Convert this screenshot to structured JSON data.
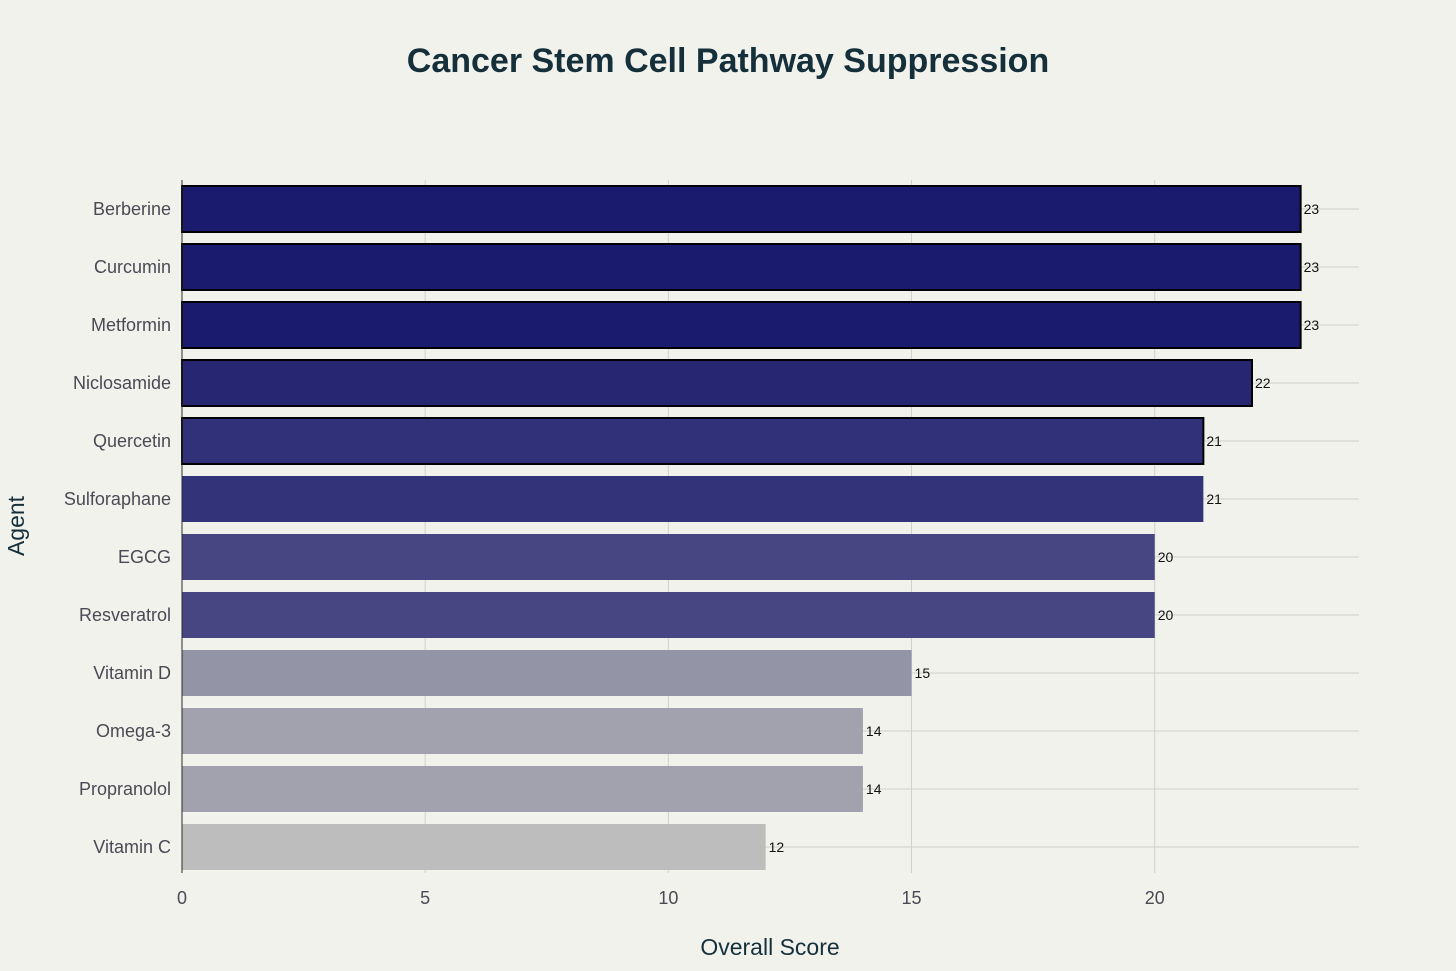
{
  "chart_data": {
    "type": "bar",
    "orientation": "horizontal",
    "title": "Cancer Stem Cell Pathway Suppression",
    "xlabel": "Overall Score",
    "ylabel": "Agent",
    "xlim": [
      0,
      24.2
    ],
    "xticks": [
      0,
      5,
      10,
      15,
      20
    ],
    "grid": true,
    "legend": "none",
    "categories": [
      "Berberine",
      "Curcumin",
      "Metformin",
      "Niclosamide",
      "Quercetin",
      "Sulforaphane",
      "EGCG",
      "Resveratrol",
      "Vitamin D",
      "Omega-3",
      "Propranolol",
      "Vitamin C"
    ],
    "values": [
      23,
      23,
      23,
      22,
      21,
      21,
      20,
      20,
      15,
      14,
      14,
      12
    ],
    "data_labels": [
      "23",
      "23",
      "23",
      "22",
      "21",
      "21",
      "20",
      "20",
      "15",
      "14",
      "14",
      "12"
    ],
    "bar_colors": [
      "#1a1a6e",
      "#1a1a6e",
      "#1a1a6e",
      "#262673",
      "#31317a",
      "#333379",
      "#484682",
      "#484682",
      "#9494a7",
      "#a2a2ae",
      "#a2a2ae",
      "#bdbdbd"
    ],
    "bar_outlined": [
      true,
      true,
      true,
      true,
      true,
      false,
      false,
      false,
      false,
      false,
      false,
      false
    ]
  }
}
